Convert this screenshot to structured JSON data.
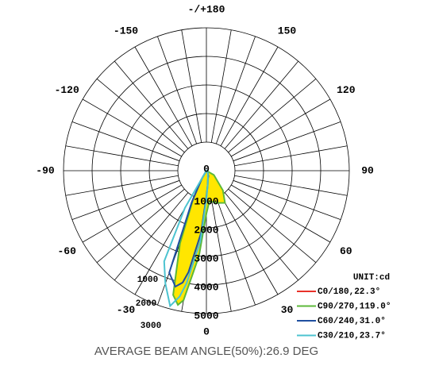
{
  "chart_data": {
    "type": "polar",
    "footer": "AVERAGE BEAM ANGLE(50%):26.9 DEG",
    "unit_label": "UNIT:cd",
    "angles": [
      -40,
      -30,
      -25,
      -20,
      -15,
      -12,
      -10,
      -5,
      0,
      5,
      10,
      20,
      30,
      40,
      60,
      90
    ],
    "series": [
      {
        "name": "C0/180,22.3°",
        "color": "#e8322a",
        "values": [
          0,
          150,
          600,
          2500,
          4400,
          4750,
          4500,
          2500,
          1000,
          500,
          300,
          150,
          100,
          50,
          0,
          0
        ]
      },
      {
        "name": "C90/270,119.0°",
        "color": "#5cb83a",
        "fill": "#ffe600",
        "values": [
          0,
          400,
          1100,
          2700,
          4500,
          4800,
          4600,
          3000,
          1500,
          1100,
          1100,
          1200,
          1300,
          900,
          300,
          0
        ]
      },
      {
        "name": "C60/240,31.0°",
        "color": "#1f4fa0",
        "values": [
          0,
          300,
          1200,
          3800,
          4200,
          4000,
          3600,
          2200,
          900,
          500,
          300,
          200,
          100,
          50,
          0,
          0
        ]
      },
      {
        "name": "C30/210,23.7°",
        "color": "#4cc3d0",
        "values": [
          0,
          1500,
          3500,
          4200,
          4900,
          4500,
          4000,
          2500,
          1000,
          500,
          300,
          150,
          100,
          50,
          0,
          0
        ]
      }
    ],
    "rlim": [
      0,
      5000
    ],
    "rticks": [
      0,
      1000,
      2000,
      3000,
      4000,
      5000
    ],
    "angle_ticks": [
      {
        "value": 180,
        "label": "-/+180"
      },
      150,
      120,
      90,
      60,
      30,
      0,
      -30,
      -60,
      -90,
      -120,
      -150
    ],
    "secondary_labels": [
      "1000",
      "2000",
      "3000"
    ]
  }
}
